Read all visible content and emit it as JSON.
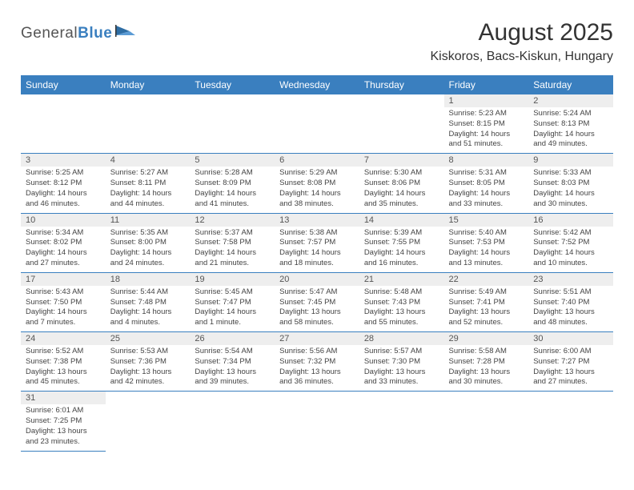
{
  "logo": {
    "text_part1": "General",
    "text_part2": "Blue"
  },
  "title": "August 2025",
  "location": "Kiskoros, Bacs-Kiskun, Hungary",
  "colors": {
    "header_bg": "#3a7fbf",
    "header_text": "#ffffff",
    "daynum_bg": "#eeeeee",
    "border": "#3a7fbf",
    "body_text": "#444444",
    "title_text": "#333333"
  },
  "weekdays": [
    "Sunday",
    "Monday",
    "Tuesday",
    "Wednesday",
    "Thursday",
    "Friday",
    "Saturday"
  ],
  "weeks": [
    [
      null,
      null,
      null,
      null,
      null,
      {
        "n": "1",
        "sr": "Sunrise: 5:23 AM",
        "ss": "Sunset: 8:15 PM",
        "d1": "Daylight: 14 hours",
        "d2": "and 51 minutes."
      },
      {
        "n": "2",
        "sr": "Sunrise: 5:24 AM",
        "ss": "Sunset: 8:13 PM",
        "d1": "Daylight: 14 hours",
        "d2": "and 49 minutes."
      }
    ],
    [
      {
        "n": "3",
        "sr": "Sunrise: 5:25 AM",
        "ss": "Sunset: 8:12 PM",
        "d1": "Daylight: 14 hours",
        "d2": "and 46 minutes."
      },
      {
        "n": "4",
        "sr": "Sunrise: 5:27 AM",
        "ss": "Sunset: 8:11 PM",
        "d1": "Daylight: 14 hours",
        "d2": "and 44 minutes."
      },
      {
        "n": "5",
        "sr": "Sunrise: 5:28 AM",
        "ss": "Sunset: 8:09 PM",
        "d1": "Daylight: 14 hours",
        "d2": "and 41 minutes."
      },
      {
        "n": "6",
        "sr": "Sunrise: 5:29 AM",
        "ss": "Sunset: 8:08 PM",
        "d1": "Daylight: 14 hours",
        "d2": "and 38 minutes."
      },
      {
        "n": "7",
        "sr": "Sunrise: 5:30 AM",
        "ss": "Sunset: 8:06 PM",
        "d1": "Daylight: 14 hours",
        "d2": "and 35 minutes."
      },
      {
        "n": "8",
        "sr": "Sunrise: 5:31 AM",
        "ss": "Sunset: 8:05 PM",
        "d1": "Daylight: 14 hours",
        "d2": "and 33 minutes."
      },
      {
        "n": "9",
        "sr": "Sunrise: 5:33 AM",
        "ss": "Sunset: 8:03 PM",
        "d1": "Daylight: 14 hours",
        "d2": "and 30 minutes."
      }
    ],
    [
      {
        "n": "10",
        "sr": "Sunrise: 5:34 AM",
        "ss": "Sunset: 8:02 PM",
        "d1": "Daylight: 14 hours",
        "d2": "and 27 minutes."
      },
      {
        "n": "11",
        "sr": "Sunrise: 5:35 AM",
        "ss": "Sunset: 8:00 PM",
        "d1": "Daylight: 14 hours",
        "d2": "and 24 minutes."
      },
      {
        "n": "12",
        "sr": "Sunrise: 5:37 AM",
        "ss": "Sunset: 7:58 PM",
        "d1": "Daylight: 14 hours",
        "d2": "and 21 minutes."
      },
      {
        "n": "13",
        "sr": "Sunrise: 5:38 AM",
        "ss": "Sunset: 7:57 PM",
        "d1": "Daylight: 14 hours",
        "d2": "and 18 minutes."
      },
      {
        "n": "14",
        "sr": "Sunrise: 5:39 AM",
        "ss": "Sunset: 7:55 PM",
        "d1": "Daylight: 14 hours",
        "d2": "and 16 minutes."
      },
      {
        "n": "15",
        "sr": "Sunrise: 5:40 AM",
        "ss": "Sunset: 7:53 PM",
        "d1": "Daylight: 14 hours",
        "d2": "and 13 minutes."
      },
      {
        "n": "16",
        "sr": "Sunrise: 5:42 AM",
        "ss": "Sunset: 7:52 PM",
        "d1": "Daylight: 14 hours",
        "d2": "and 10 minutes."
      }
    ],
    [
      {
        "n": "17",
        "sr": "Sunrise: 5:43 AM",
        "ss": "Sunset: 7:50 PM",
        "d1": "Daylight: 14 hours",
        "d2": "and 7 minutes."
      },
      {
        "n": "18",
        "sr": "Sunrise: 5:44 AM",
        "ss": "Sunset: 7:48 PM",
        "d1": "Daylight: 14 hours",
        "d2": "and 4 minutes."
      },
      {
        "n": "19",
        "sr": "Sunrise: 5:45 AM",
        "ss": "Sunset: 7:47 PM",
        "d1": "Daylight: 14 hours",
        "d2": "and 1 minute."
      },
      {
        "n": "20",
        "sr": "Sunrise: 5:47 AM",
        "ss": "Sunset: 7:45 PM",
        "d1": "Daylight: 13 hours",
        "d2": "and 58 minutes."
      },
      {
        "n": "21",
        "sr": "Sunrise: 5:48 AM",
        "ss": "Sunset: 7:43 PM",
        "d1": "Daylight: 13 hours",
        "d2": "and 55 minutes."
      },
      {
        "n": "22",
        "sr": "Sunrise: 5:49 AM",
        "ss": "Sunset: 7:41 PM",
        "d1": "Daylight: 13 hours",
        "d2": "and 52 minutes."
      },
      {
        "n": "23",
        "sr": "Sunrise: 5:51 AM",
        "ss": "Sunset: 7:40 PM",
        "d1": "Daylight: 13 hours",
        "d2": "and 48 minutes."
      }
    ],
    [
      {
        "n": "24",
        "sr": "Sunrise: 5:52 AM",
        "ss": "Sunset: 7:38 PM",
        "d1": "Daylight: 13 hours",
        "d2": "and 45 minutes."
      },
      {
        "n": "25",
        "sr": "Sunrise: 5:53 AM",
        "ss": "Sunset: 7:36 PM",
        "d1": "Daylight: 13 hours",
        "d2": "and 42 minutes."
      },
      {
        "n": "26",
        "sr": "Sunrise: 5:54 AM",
        "ss": "Sunset: 7:34 PM",
        "d1": "Daylight: 13 hours",
        "d2": "and 39 minutes."
      },
      {
        "n": "27",
        "sr": "Sunrise: 5:56 AM",
        "ss": "Sunset: 7:32 PM",
        "d1": "Daylight: 13 hours",
        "d2": "and 36 minutes."
      },
      {
        "n": "28",
        "sr": "Sunrise: 5:57 AM",
        "ss": "Sunset: 7:30 PM",
        "d1": "Daylight: 13 hours",
        "d2": "and 33 minutes."
      },
      {
        "n": "29",
        "sr": "Sunrise: 5:58 AM",
        "ss": "Sunset: 7:28 PM",
        "d1": "Daylight: 13 hours",
        "d2": "and 30 minutes."
      },
      {
        "n": "30",
        "sr": "Sunrise: 6:00 AM",
        "ss": "Sunset: 7:27 PM",
        "d1": "Daylight: 13 hours",
        "d2": "and 27 minutes."
      }
    ],
    [
      {
        "n": "31",
        "sr": "Sunrise: 6:01 AM",
        "ss": "Sunset: 7:25 PM",
        "d1": "Daylight: 13 hours",
        "d2": "and 23 minutes."
      },
      null,
      null,
      null,
      null,
      null,
      null
    ]
  ]
}
